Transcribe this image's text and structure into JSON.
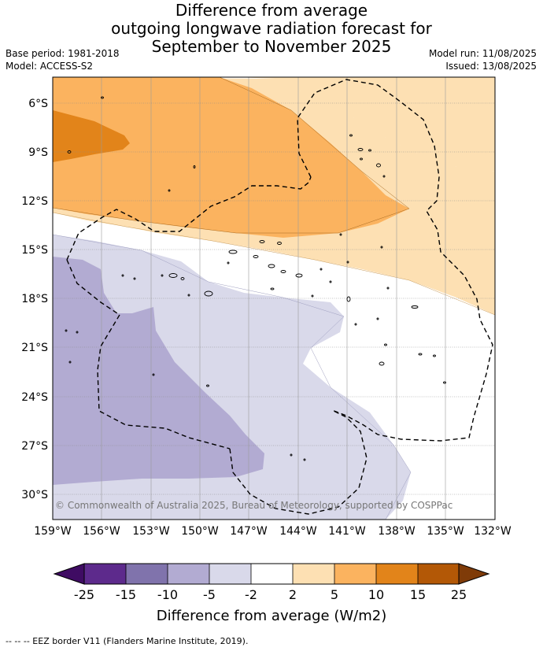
{
  "title": {
    "line1": "Difference from average",
    "line2": "outgoing longwave radiation forecast for",
    "line3": "September to November 2025"
  },
  "meta": {
    "base_period": "Base period: 1981-2018",
    "model": "Model: ACCESS-S2",
    "model_run": "Model run: 11/08/2025",
    "issued": "Issued: 13/08/2025"
  },
  "map": {
    "lat_labels": [
      "6°S",
      "9°S",
      "12°S",
      "15°S",
      "18°S",
      "21°S",
      "24°S",
      "27°S",
      "30°S"
    ],
    "lon_labels": [
      "159°W",
      "156°W",
      "153°W",
      "150°W",
      "147°W",
      "144°W",
      "141°W",
      "138°W",
      "135°W",
      "132°W"
    ],
    "copyright": "© Commonwealth of Australia 2025, Bureau of Meteorology, supported by COSPPac",
    "colors": {
      "pos_2_5": "#fde0b3",
      "pos_5_10": "#fbb35f",
      "pos_10_15": "#e2841a",
      "neg_2_5": "#d9d9ea",
      "neg_5_10": "#b2abd2",
      "eez": "#000000",
      "grid": "#8c8c8c"
    }
  },
  "colorbar": {
    "labels": [
      "-25",
      "-15",
      "-10",
      "-5",
      "-2",
      "2",
      "5",
      "10",
      "15",
      "25"
    ],
    "colors": [
      "#3f0c63",
      "#5d2a8c",
      "#8073ac",
      "#b2abd2",
      "#d9d9ea",
      "#ffffff",
      "#fde0b3",
      "#fbb35f",
      "#e2841a",
      "#b35806",
      "#7f3b08"
    ],
    "label": "Difference from average (W/m2)"
  },
  "footer": "-- -- -- EEZ border V11 (Flanders Marine Institute, 2019)."
}
